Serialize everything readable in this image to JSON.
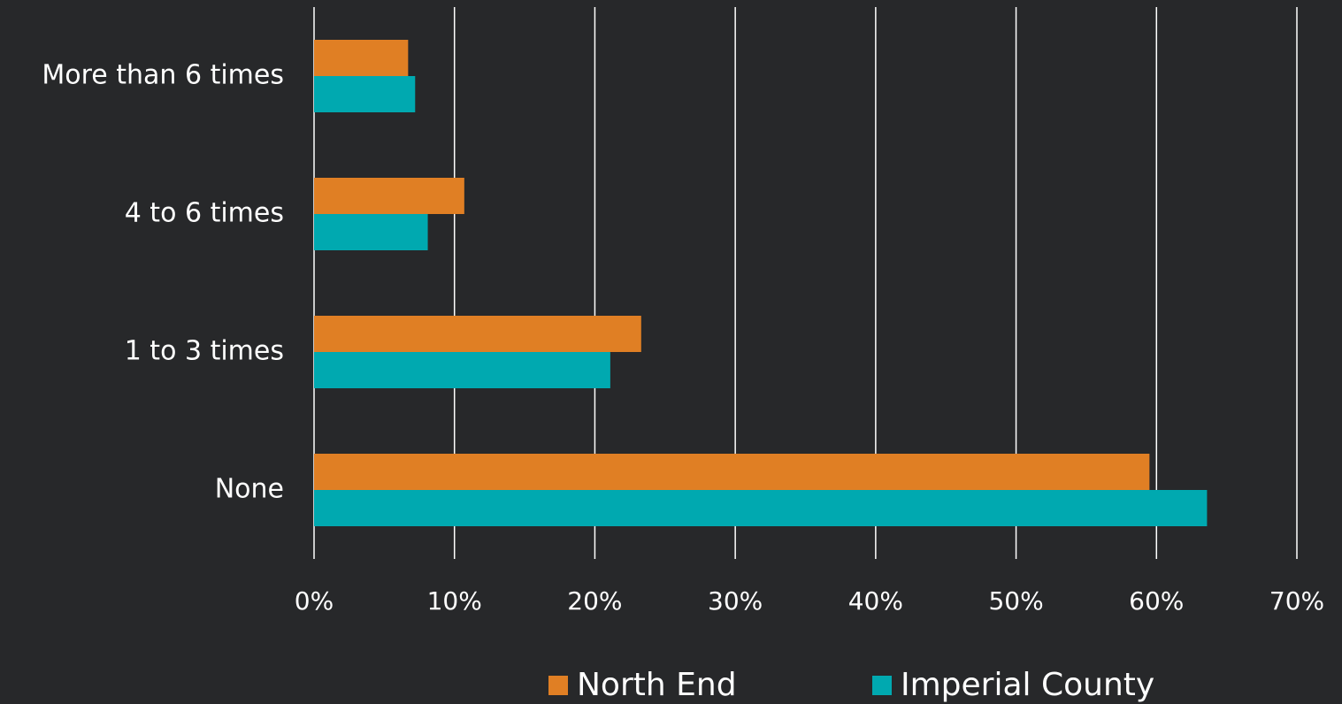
{
  "chart_data": {
    "type": "barh",
    "categories": [
      "More than 6 times",
      "4 to 6 times",
      "1 to 3 times",
      "None"
    ],
    "series": [
      {
        "name": "North End",
        "color": "#e07f24",
        "values": [
          6.7,
          10.7,
          23.3,
          59.5
        ]
      },
      {
        "name": "Imperial County",
        "color": "#00a9b0",
        "values": [
          7.2,
          8.1,
          21.1,
          63.6
        ]
      }
    ],
    "xlim": [
      0,
      70
    ],
    "xticks": [
      {
        "value": 0,
        "label": "0%"
      },
      {
        "value": 10,
        "label": "10%"
      },
      {
        "value": 20,
        "label": "20%"
      },
      {
        "value": 30,
        "label": "30%"
      },
      {
        "value": 40,
        "label": "40%"
      },
      {
        "value": 50,
        "label": "50%"
      },
      {
        "value": 60,
        "label": "60%"
      },
      {
        "value": 70,
        "label": "70%"
      }
    ],
    "grid": true,
    "legend": "bottom"
  }
}
